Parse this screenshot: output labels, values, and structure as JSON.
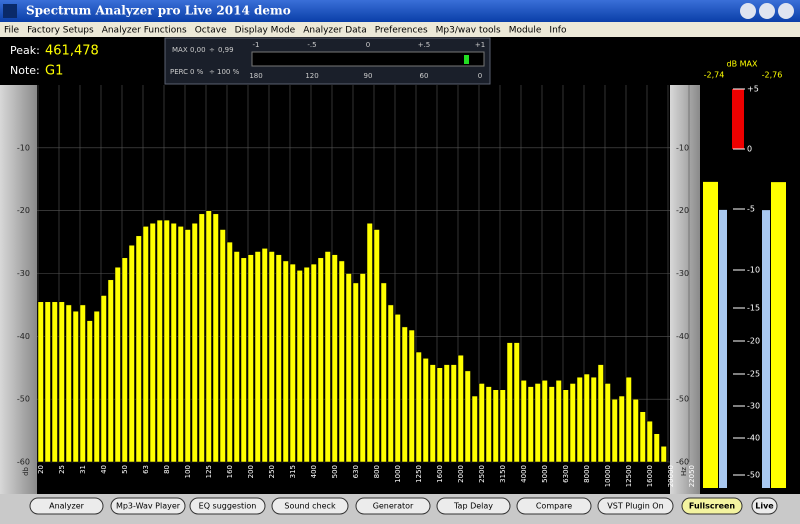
{
  "window": {
    "title": "Spectrum Analyzer pro Live 2014 demo"
  },
  "menu": [
    "File",
    "Factory Setups",
    "Analyzer Functions",
    "Octave",
    "Display Mode",
    "Analyzer Data",
    "Preferences",
    "Mp3/wav tools",
    "Module",
    "Info"
  ],
  "readout": {
    "peak_label": "Peak:",
    "peak": "461,478",
    "note_label": "Note:",
    "note": "G1"
  },
  "controls": {
    "max_label": "MAX",
    "max_from": "0,00",
    "max_sep": "÷",
    "max_to": "0,99",
    "perc_label": "PERC",
    "perc_from": "0 %",
    "perc_sep": "÷",
    "perc_to": "100 %",
    "scale_top": [
      "-1",
      "-.5",
      "0",
      "+.5",
      "+1"
    ],
    "scale_bottom": [
      "180",
      "120",
      "90",
      "60",
      "0"
    ]
  },
  "chart_data": {
    "type": "bar",
    "color": "#ffff00",
    "ylim": [
      -60,
      0
    ],
    "yticks": [
      -10,
      -20,
      -30,
      -40,
      -50,
      -60
    ],
    "grid": true,
    "y_unit": "db",
    "x_unit": "Hz",
    "categories": [
      "20",
      null,
      null,
      "25",
      null,
      null,
      "31",
      null,
      null,
      "40",
      null,
      null,
      "50",
      null,
      null,
      "63",
      null,
      null,
      "80",
      null,
      null,
      "100",
      null,
      null,
      "125",
      null,
      null,
      "160",
      null,
      null,
      "200",
      null,
      null,
      "250",
      null,
      null,
      "315",
      null,
      null,
      "400",
      null,
      null,
      "500",
      null,
      null,
      "630",
      null,
      null,
      "800",
      null,
      null,
      "1000",
      null,
      null,
      "1250",
      null,
      null,
      "1600",
      null,
      null,
      "2000",
      null,
      null,
      "2500",
      null,
      null,
      "3150",
      null,
      null,
      "4000",
      null,
      null,
      "5000",
      null,
      null,
      "6300",
      null,
      null,
      "8000",
      null,
      null,
      "10000",
      null,
      null,
      "12500",
      null,
      null,
      "16000",
      null,
      null,
      "20000",
      null,
      null,
      "22050",
      null,
      null
    ],
    "values": [
      -34.5,
      -34.5,
      -34.5,
      -34.5,
      -35,
      -36,
      -35,
      -37.5,
      -36,
      -33.5,
      -31,
      -29,
      -27.5,
      -25.5,
      -24,
      -22.5,
      -22,
      -21.5,
      -21.5,
      -22,
      -22.5,
      -23,
      -22,
      -20.5,
      -20,
      -20.5,
      -23,
      -25,
      -26.5,
      -27.5,
      -27,
      -26.5,
      -26,
      -26.5,
      -27,
      -28,
      -28.5,
      -29.5,
      -29,
      -28.5,
      -27.5,
      -26.5,
      -27,
      -28,
      -30,
      -31.5,
      -30,
      -22,
      -23,
      -31.5,
      -35,
      -36.5,
      -38.5,
      -39,
      -42.5,
      -43.5,
      -44.5,
      -45,
      -44.5,
      -44.5,
      -43,
      -45.5,
      -49.5,
      -47.5,
      -48,
      -48.5,
      -48.5,
      -41,
      -41,
      -47,
      -48,
      -47.5,
      -47,
      -48,
      -47,
      -48.5,
      -47.5,
      -46.5,
      -46,
      -46.5,
      -44.5,
      -47.5,
      -50,
      -49.5,
      -46.5,
      -50,
      -52,
      -53.5,
      -55.5,
      -57.5,
      null,
      null,
      null,
      null,
      null,
      null
    ]
  },
  "meter": {
    "title": "dB MAX",
    "left": -2.74,
    "left_label": "-2,74",
    "right": -2.76,
    "right_label": "-2,76",
    "ticks": [
      {
        "value": 5,
        "label": "+5"
      },
      0,
      -5,
      -10,
      -15,
      -20,
      -25,
      -30,
      -40,
      -50
    ]
  },
  "buttons": [
    "Analyzer",
    "Mp3-Wav Player",
    "EQ suggestion",
    "Sound check",
    "Generator",
    "Tap Delay",
    "Compare",
    "VST Plugin On",
    "Fullscreen",
    "Live"
  ]
}
